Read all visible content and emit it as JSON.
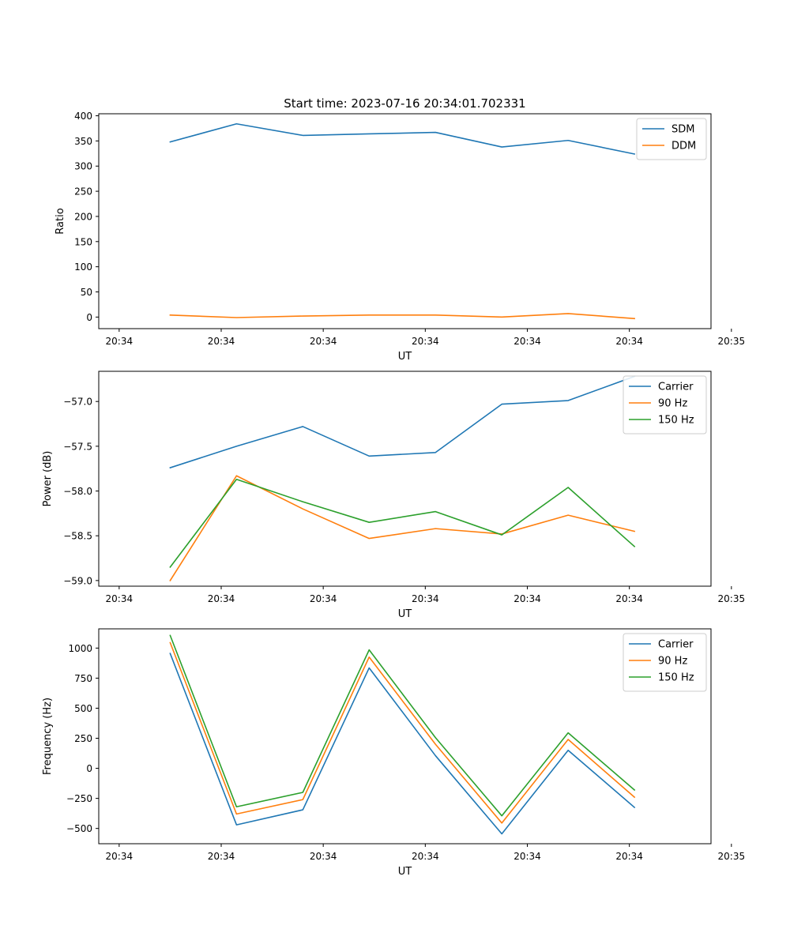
{
  "colors": {
    "blue": "#1f77b4",
    "orange": "#ff7f0e",
    "green": "#2ca02c"
  },
  "chart_data": [
    {
      "type": "line",
      "title": "Start time: 2023-07-16 20:34:01.702331",
      "xlabel": "UT",
      "ylabel": "Ratio",
      "xlim": [
        -0.2,
        5.8
      ],
      "xticks": [
        0,
        1,
        2,
        3,
        4,
        5,
        6
      ],
      "xtick_labels": [
        "20:34",
        "20:34",
        "20:34",
        "20:34",
        "20:34",
        "20:34",
        "20:35"
      ],
      "ylim": [
        -23,
        404
      ],
      "yticks": [
        0,
        50,
        100,
        150,
        200,
        250,
        300,
        350,
        400
      ],
      "yticklabels": [
        "0",
        "50",
        "100",
        "150",
        "200",
        "250",
        "300",
        "350",
        "400"
      ],
      "legend_position": "top-right",
      "x": [
        0.5,
        1.15,
        1.8,
        2.45,
        3.1,
        3.75,
        4.4,
        5.05
      ],
      "series": [
        {
          "name": "SDM",
          "color": "#1f77b4",
          "values": [
            348,
            384,
            361,
            364,
            367,
            338,
            351,
            324
          ]
        },
        {
          "name": "DDM",
          "color": "#ff7f0e",
          "values": [
            4,
            -1,
            2,
            4,
            4,
            0,
            7,
            -3
          ]
        }
      ]
    },
    {
      "type": "line",
      "title": "",
      "xlabel": "UT",
      "ylabel": "Power (dB)",
      "xlim": [
        -0.2,
        5.8
      ],
      "xticks": [
        0,
        1,
        2,
        3,
        4,
        5,
        6
      ],
      "xtick_labels": [
        "20:34",
        "20:34",
        "20:34",
        "20:34",
        "20:34",
        "20:34",
        "20:35"
      ],
      "ylim": [
        -59.063,
        -56.663
      ],
      "yticks": [
        -59.0,
        -58.5,
        -58.0,
        -57.5,
        -57.0
      ],
      "yticklabels": [
        "−59.0",
        "−58.5",
        "−58.0",
        "−57.5",
        "−57.0"
      ],
      "legend_position": "top-right",
      "x": [
        0.5,
        1.15,
        1.8,
        2.45,
        3.1,
        3.75,
        4.4,
        5.05
      ],
      "series": [
        {
          "name": "Carrier",
          "color": "#1f77b4",
          "values": [
            -57.74,
            -57.5,
            -57.28,
            -57.61,
            -57.57,
            -57.03,
            -56.99,
            -56.72
          ]
        },
        {
          "name": "90 Hz",
          "color": "#ff7f0e",
          "values": [
            -59.0,
            -57.83,
            -58.2,
            -58.53,
            -58.42,
            -58.48,
            -58.27,
            -58.45
          ]
        },
        {
          "name": "150 Hz",
          "color": "#2ca02c",
          "values": [
            -58.85,
            -57.87,
            -58.12,
            -58.35,
            -58.23,
            -58.49,
            -57.96,
            -58.62
          ]
        }
      ]
    },
    {
      "type": "line",
      "title": "",
      "xlabel": "UT",
      "ylabel": "Frequency (Hz)",
      "xlim": [
        -0.2,
        5.8
      ],
      "xticks": [
        0,
        1,
        2,
        3,
        4,
        5,
        6
      ],
      "xtick_labels": [
        "20:34",
        "20:34",
        "20:34",
        "20:34",
        "20:34",
        "20:34",
        "20:35"
      ],
      "ylim": [
        -627,
        1160
      ],
      "yticks": [
        -500,
        -250,
        0,
        250,
        500,
        750,
        1000
      ],
      "yticklabels": [
        "−500",
        "−250",
        "0",
        "250",
        "500",
        "750",
        "1000"
      ],
      "legend_position": "top-right",
      "x": [
        0.5,
        1.15,
        1.8,
        2.45,
        3.1,
        3.75,
        4.4,
        5.05
      ],
      "series": [
        {
          "name": "Carrier",
          "color": "#1f77b4",
          "values": [
            955,
            -470,
            -345,
            835,
            105,
            -545,
            150,
            -325
          ]
        },
        {
          "name": "90 Hz",
          "color": "#ff7f0e",
          "values": [
            1045,
            -380,
            -260,
            925,
            200,
            -455,
            240,
            -240
          ]
        },
        {
          "name": "150 Hz",
          "color": "#2ca02c",
          "values": [
            1105,
            -320,
            -200,
            985,
            255,
            -395,
            295,
            -180
          ]
        }
      ]
    }
  ]
}
